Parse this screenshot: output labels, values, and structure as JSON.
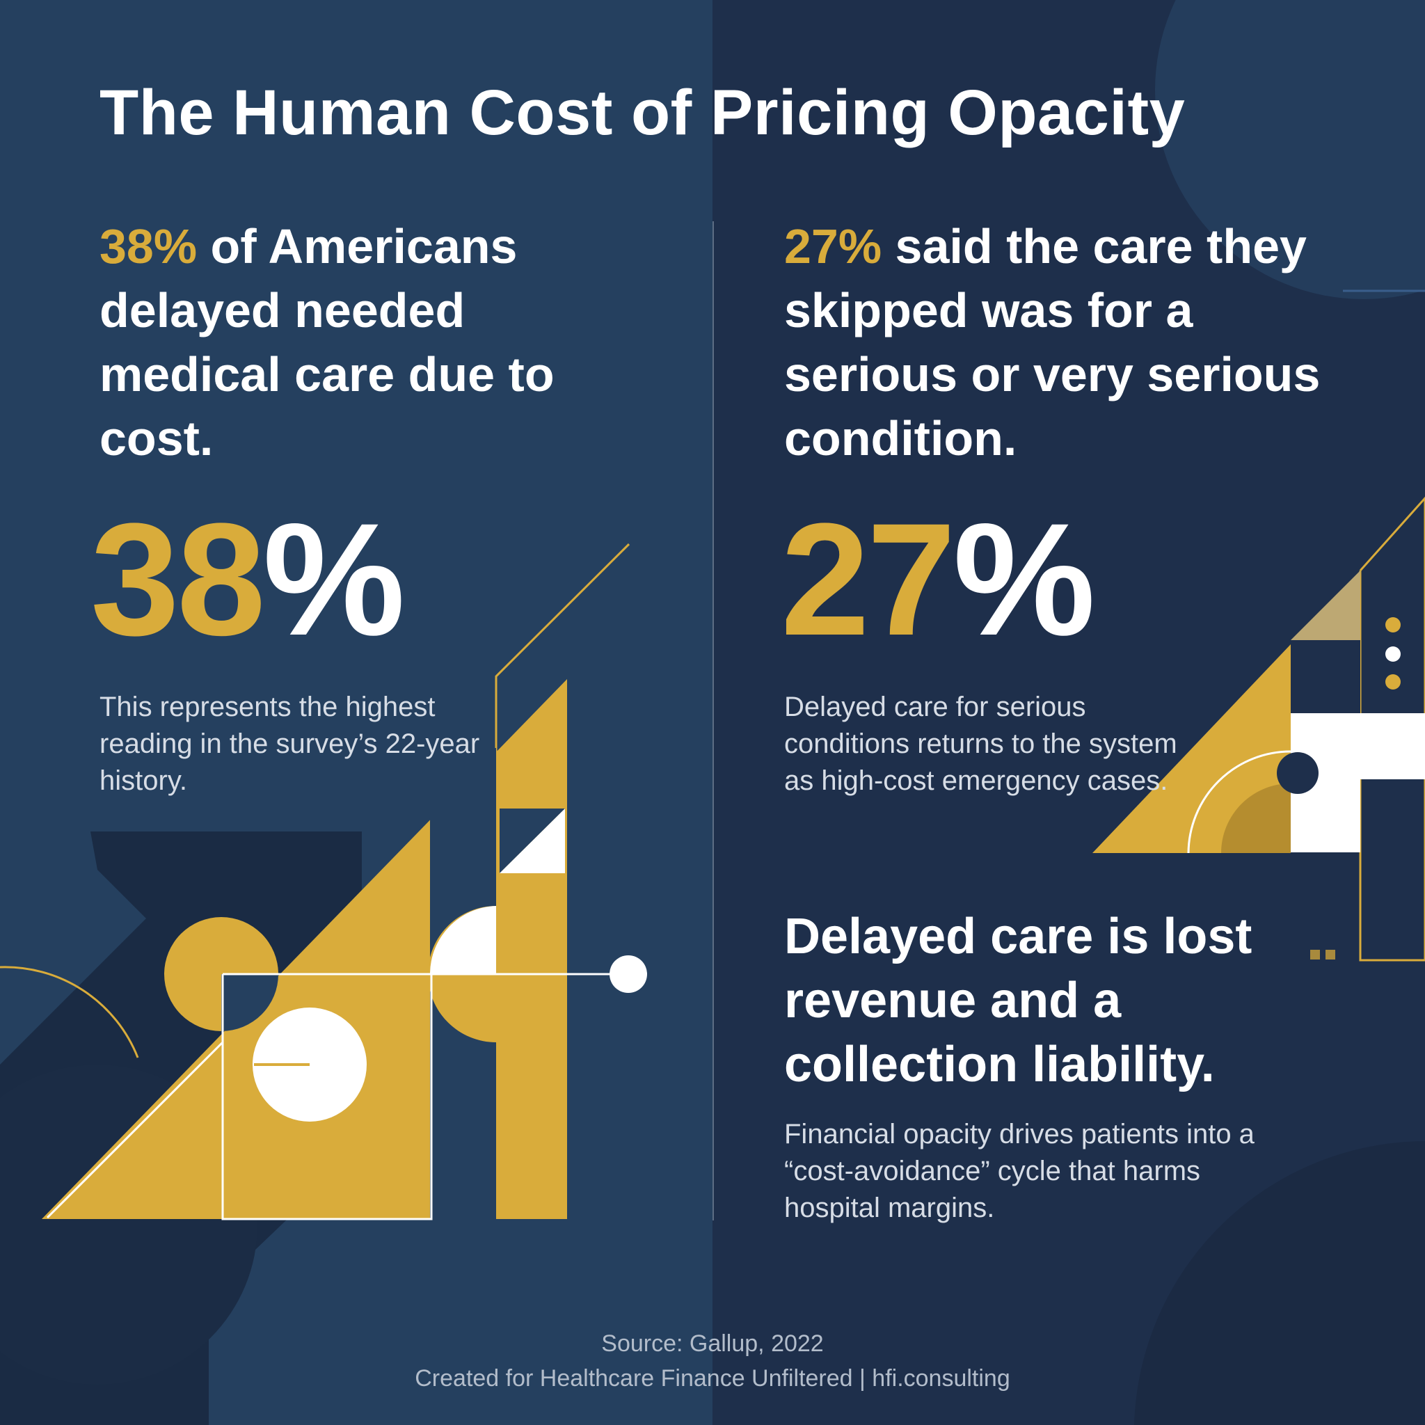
{
  "title": "The Human Cost of Pricing Opacity",
  "left": {
    "headline_stat": "38%",
    "headline_text": " of Americans delayed needed medical care due to cost.",
    "big_number": "38",
    "big_symbol": "%",
    "body": "This represents the highest reading in the survey’s 22-year history."
  },
  "right": {
    "headline_stat": "27%",
    "headline_text": " said the care they skipped was for a serious or very serious condition.",
    "big_number": "27",
    "big_symbol": "%",
    "body": "Delayed care for serious conditions returns to the system as high-cost emergency cases."
  },
  "bottom": {
    "headline": "Delayed care is lost revenue and a collection liability.",
    "body": "Financial opacity drives patients into a “cost-avoidance” cycle that harms hospital margins."
  },
  "footer": {
    "source": "Source: Gallup, 2022",
    "credit": "Created for Healthcare Finance Unfiltered | hfi.consulting"
  },
  "colors": {
    "navy_left": "#25405f",
    "navy_right": "#1e2f4b",
    "gold": "#d9ac3b",
    "white": "#ffffff"
  }
}
